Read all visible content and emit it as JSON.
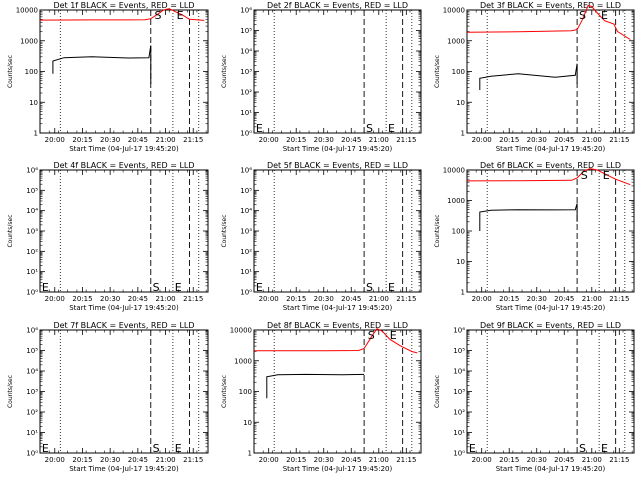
{
  "chart_data": [
    {
      "type": "line",
      "title": "Det 1f BLACK = Events, RED = LLD",
      "xlabel": "Start Time (04-Jul-17 19:45:20)",
      "ylabel": "Counts/sec",
      "yscale": "log",
      "ylim": [
        1,
        10000
      ],
      "yticks": [
        "10000",
        "1000",
        "100",
        "10",
        "1"
      ],
      "xlim": [
        "19:52",
        "21:23"
      ],
      "xticks": [
        "20:00",
        "20:15",
        "20:30",
        "20:45",
        "21:00",
        "21:15"
      ],
      "dotted_lines": [
        "20:03",
        "21:04",
        "21:18"
      ],
      "dashed_lines": [
        "20:52",
        "21:13"
      ],
      "markers": [
        {
          "label": "S",
          "x": "20:54",
          "y": 10000
        },
        {
          "label": "E",
          "x": "21:06",
          "y": 10000
        }
      ],
      "series": [
        {
          "name": "LLD",
          "color": "#ff0000",
          "points": [
            [
              "19:52",
              4700
            ],
            [
              "20:20",
              4750
            ],
            [
              "20:49",
              4800
            ],
            [
              "20:52",
              5200
            ],
            [
              "20:56",
              7500
            ],
            [
              "20:59",
              10000
            ],
            [
              "21:02",
              11000
            ],
            [
              "21:05",
              9000
            ],
            [
              "21:09",
              7000
            ],
            [
              "21:13",
              5000
            ],
            [
              "21:21",
              4600
            ]
          ]
        },
        {
          "name": "Events",
          "color": "#000000",
          "points": [
            [
              "19:59",
              85
            ],
            [
              "19:59",
              220
            ],
            [
              "20:05",
              280
            ],
            [
              "20:20",
              300
            ],
            [
              "20:40",
              275
            ],
            [
              "20:51",
              280
            ],
            [
              "20:52",
              700
            ],
            [
              "20:52",
              40
            ]
          ]
        }
      ]
    },
    {
      "type": "line",
      "title": "Det 2f BLACK = Events, RED = LLD",
      "xlabel": "Start Time (04-Jul-17 19:45:20)",
      "ylabel": "Counts/sec",
      "yscale": "log",
      "ylim": [
        1,
        1000000
      ],
      "yticks": [
        "10⁶",
        "10⁵",
        "10⁴",
        "10³",
        "10²",
        "10¹",
        "10⁰"
      ],
      "xlim": [
        "19:52",
        "21:23"
      ],
      "xticks": [
        "20:00",
        "20:15",
        "20:30",
        "20:45",
        "21:00",
        "21:15"
      ],
      "dotted_lines": [
        "20:03",
        "21:04",
        "21:18"
      ],
      "dashed_lines": [
        "20:52",
        "21:13"
      ],
      "markers": [
        {
          "label": "E",
          "x": "19:53",
          "y": 1.6
        },
        {
          "label": "S",
          "x": "20:53",
          "y": 1.6
        },
        {
          "label": "E",
          "x": "21:05",
          "y": 1.6
        }
      ],
      "series": []
    },
    {
      "type": "line",
      "title": "Det 3f BLACK = Events, RED = LLD",
      "xlabel": "Start Time (04-Jul-17 19:45:20)",
      "ylabel": "Counts/sec",
      "yscale": "log",
      "ylim": [
        1,
        10000
      ],
      "yticks": [
        "10000",
        "1000",
        "100",
        "10",
        "1"
      ],
      "xlim": [
        "19:52",
        "21:23"
      ],
      "xticks": [
        "20:00",
        "20:15",
        "20:30",
        "20:45",
        "21:00",
        "21:15"
      ],
      "dotted_lines": [
        "20:03",
        "21:04",
        "21:18"
      ],
      "dashed_lines": [
        "20:52",
        "21:13"
      ],
      "markers": [
        {
          "label": "S",
          "x": "20:53",
          "y": 10000
        },
        {
          "label": "E",
          "x": "21:05",
          "y": 10000
        }
      ],
      "series": [
        {
          "name": "LLD",
          "color": "#ff0000",
          "points": [
            [
              "19:52",
              1900
            ],
            [
              "20:20",
              1950
            ],
            [
              "20:49",
              2100
            ],
            [
              "20:52",
              2300
            ],
            [
              "20:55",
              5000
            ],
            [
              "20:58",
              14000
            ],
            [
              "21:00",
              13000
            ],
            [
              "21:03",
              8000
            ],
            [
              "21:07",
              4500
            ],
            [
              "21:12",
              3500
            ],
            [
              "21:14",
              2000
            ],
            [
              "21:21",
              1100
            ]
          ]
        },
        {
          "name": "Events",
          "color": "#000000",
          "points": [
            [
              "19:59",
              25
            ],
            [
              "19:59",
              60
            ],
            [
              "20:05",
              70
            ],
            [
              "20:20",
              85
            ],
            [
              "20:40",
              65
            ],
            [
              "20:51",
              75
            ],
            [
              "20:52",
              180
            ],
            [
              "20:52",
              40
            ]
          ]
        }
      ]
    },
    {
      "type": "line",
      "title": "Det 4f BLACK = Events, RED = LLD",
      "xlabel": "Start Time (04-Jul-17 19:45:20)",
      "ylabel": "Counts/sec",
      "yscale": "log",
      "ylim": [
        1,
        1000000
      ],
      "yticks": [
        "10⁶",
        "10⁵",
        "10⁴",
        "10³",
        "10²",
        "10¹",
        "10⁰"
      ],
      "xlim": [
        "19:52",
        "21:23"
      ],
      "xticks": [
        "20:00",
        "20:15",
        "20:30",
        "20:45",
        "21:00",
        "21:15"
      ],
      "dotted_lines": [
        "20:03",
        "21:04",
        "21:18"
      ],
      "dashed_lines": [
        "20:52",
        "21:13"
      ],
      "markers": [
        {
          "label": "E",
          "x": "19:53",
          "y": 1.6
        },
        {
          "label": "S",
          "x": "20:53",
          "y": 1.6
        },
        {
          "label": "E",
          "x": "21:05",
          "y": 1.6
        }
      ],
      "series": []
    },
    {
      "type": "line",
      "title": "Det 5f BLACK = Events, RED = LLD",
      "xlabel": "Start Time (04-Jul-17 19:45:20)",
      "ylabel": "Counts/sec",
      "yscale": "log",
      "ylim": [
        1,
        1000000
      ],
      "yticks": [
        "10⁶",
        "10⁵",
        "10⁴",
        "10³",
        "10²",
        "10¹",
        "10⁰"
      ],
      "xlim": [
        "19:52",
        "21:23"
      ],
      "xticks": [
        "20:00",
        "20:15",
        "20:30",
        "20:45",
        "21:00",
        "21:15"
      ],
      "dotted_lines": [
        "20:03",
        "21:04",
        "21:18"
      ],
      "dashed_lines": [
        "20:52",
        "21:13"
      ],
      "markers": [
        {
          "label": "E",
          "x": "19:53",
          "y": 1.6
        },
        {
          "label": "S",
          "x": "20:53",
          "y": 1.6
        },
        {
          "label": "E",
          "x": "21:05",
          "y": 1.6
        }
      ],
      "series": []
    },
    {
      "type": "line",
      "title": "Det 6f BLACK = Events, RED = LLD",
      "xlabel": "Start Time (04-Jul-17 19:45:20)",
      "ylabel": "Counts/sec",
      "yscale": "log",
      "ylim": [
        1,
        10000
      ],
      "yticks": [
        "10000",
        "1000",
        "100",
        "10",
        "1"
      ],
      "xlim": [
        "19:52",
        "21:23"
      ],
      "xticks": [
        "20:00",
        "20:15",
        "20:30",
        "20:45",
        "21:00",
        "21:15"
      ],
      "dotted_lines": [
        "20:03",
        "21:04",
        "21:18"
      ],
      "dashed_lines": [
        "20:52",
        "21:13"
      ],
      "markers": [
        {
          "label": "S",
          "x": "20:54",
          "y": 10000
        },
        {
          "label": "E",
          "x": "21:06",
          "y": 10000
        }
      ],
      "series": [
        {
          "name": "LLD",
          "color": "#ff0000",
          "points": [
            [
              "19:52",
              4400
            ],
            [
              "20:20",
              4450
            ],
            [
              "20:49",
              4600
            ],
            [
              "20:52",
              5500
            ],
            [
              "20:56",
              9500
            ],
            [
              "20:59",
              11000
            ],
            [
              "21:03",
              10000
            ],
            [
              "21:08",
              7000
            ],
            [
              "21:13",
              5000
            ],
            [
              "21:21",
              3300
            ]
          ]
        },
        {
          "name": "Events",
          "color": "#000000",
          "points": [
            [
              "19:59",
              100
            ],
            [
              "19:59",
              420
            ],
            [
              "20:05",
              480
            ],
            [
              "20:20",
              500
            ],
            [
              "20:40",
              490
            ],
            [
              "20:51",
              500
            ],
            [
              "20:52",
              800
            ],
            [
              "20:52",
              200
            ]
          ]
        }
      ]
    },
    {
      "type": "line",
      "title": "Det 7f BLACK = Events, RED = LLD",
      "xlabel": "Start Time (04-Jul-17 19:45:20)",
      "ylabel": "Counts/sec",
      "yscale": "log",
      "ylim": [
        1,
        1000000
      ],
      "yticks": [
        "10⁶",
        "10⁵",
        "10⁴",
        "10³",
        "10²",
        "10¹",
        "10⁰"
      ],
      "xlim": [
        "19:52",
        "21:23"
      ],
      "xticks": [
        "20:00",
        "20:15",
        "20:30",
        "20:45",
        "21:00",
        "21:15"
      ],
      "dotted_lines": [
        "20:03",
        "21:04",
        "21:18"
      ],
      "dashed_lines": [
        "20:52",
        "21:13"
      ],
      "markers": [
        {
          "label": "E",
          "x": "19:53",
          "y": 1.6
        },
        {
          "label": "S",
          "x": "20:53",
          "y": 1.6
        },
        {
          "label": "E",
          "x": "21:05",
          "y": 1.6
        }
      ],
      "series": []
    },
    {
      "type": "line",
      "title": "Det 8f BLACK = Events, RED = LLD",
      "xlabel": "Start Time (04-Jul-17 19:45:20)",
      "ylabel": "Counts/sec",
      "yscale": "log",
      "ylim": [
        1,
        10000
      ],
      "yticks": [
        "10000",
        "1000",
        "100",
        "10",
        "1"
      ],
      "xlim": [
        "19:52",
        "21:23"
      ],
      "xticks": [
        "20:00",
        "20:15",
        "20:30",
        "20:45",
        "21:00",
        "21:15"
      ],
      "dotted_lines": [
        "20:03",
        "21:04",
        "21:18"
      ],
      "dashed_lines": [
        "20:52",
        "21:13"
      ],
      "markers": [
        {
          "label": "S",
          "x": "20:54",
          "y": 10000
        },
        {
          "label": "E",
          "x": "21:06",
          "y": 10000
        }
      ],
      "series": [
        {
          "name": "LLD",
          "color": "#ff0000",
          "points": [
            [
              "19:52",
              2100
            ],
            [
              "20:30",
              2100
            ],
            [
              "20:49",
              2150
            ],
            [
              "20:52",
              2500
            ],
            [
              "20:56",
              6000
            ],
            [
              "20:59",
              11000
            ],
            [
              "21:02",
              9000
            ],
            [
              "21:06",
              5000
            ],
            [
              "21:12",
              3000
            ],
            [
              "21:18",
              2000
            ],
            [
              "21:21",
              1800
            ]
          ]
        },
        {
          "name": "Events",
          "color": "#000000",
          "points": [
            [
              "19:59",
              60
            ],
            [
              "19:59",
              300
            ],
            [
              "20:05",
              350
            ],
            [
              "20:20",
              360
            ],
            [
              "20:40",
              350
            ],
            [
              "20:52",
              360
            ]
          ]
        }
      ]
    },
    {
      "type": "line",
      "title": "Det 9f BLACK = Events, RED = LLD",
      "xlabel": "Start Time (04-Jul-17 19:45:20)",
      "ylabel": "Counts/sec",
      "yscale": "log",
      "ylim": [
        1,
        1000000
      ],
      "yticks": [
        "10⁶",
        "10⁵",
        "10⁴",
        "10³",
        "10²",
        "10¹",
        "10⁰"
      ],
      "xlim": [
        "19:52",
        "21:23"
      ],
      "xticks": [
        "20:00",
        "20:15",
        "20:30",
        "20:45",
        "21:00",
        "21:15"
      ],
      "dotted_lines": [
        "20:03",
        "21:04",
        "21:18"
      ],
      "dashed_lines": [
        "20:52",
        "21:13"
      ],
      "markers": [
        {
          "label": "E",
          "x": "19:53",
          "y": 1.6
        },
        {
          "label": "S",
          "x": "20:53",
          "y": 1.6
        },
        {
          "label": "E",
          "x": "21:05",
          "y": 1.6
        }
      ],
      "series": []
    }
  ]
}
